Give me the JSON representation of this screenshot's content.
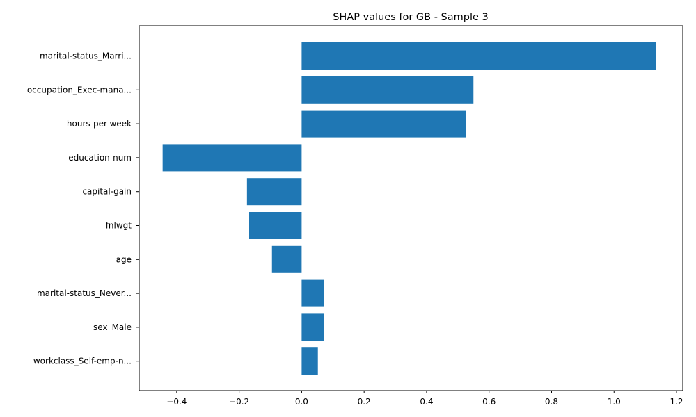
{
  "chart_data": {
    "type": "bar",
    "orientation": "horizontal",
    "title": "SHAP values for GB - Sample 3",
    "xlabel": "",
    "ylabel": "",
    "categories": [
      "marital-status_Marri...",
      "occupation_Exec-mana...",
      "hours-per-week",
      "education-num",
      "capital-gain",
      "fnlwgt",
      "age",
      "marital-status_Never...",
      "sex_Male",
      "workclass_Self-emp-n..."
    ],
    "values": [
      1.135,
      0.55,
      0.525,
      -0.445,
      -0.175,
      -0.168,
      -0.095,
      0.072,
      0.072,
      0.052
    ],
    "xlim": [
      -0.52,
      1.22
    ],
    "xticks": [
      -0.4,
      -0.2,
      0.0,
      0.2,
      0.4,
      0.6,
      0.8,
      1.0,
      1.2
    ],
    "xtick_labels": [
      "−0.4",
      "−0.2",
      "0.0",
      "0.2",
      "0.4",
      "0.6",
      "0.8",
      "1.0",
      "1.2"
    ],
    "grid": false,
    "legend": "none",
    "bar_color": "#1f77b4"
  }
}
